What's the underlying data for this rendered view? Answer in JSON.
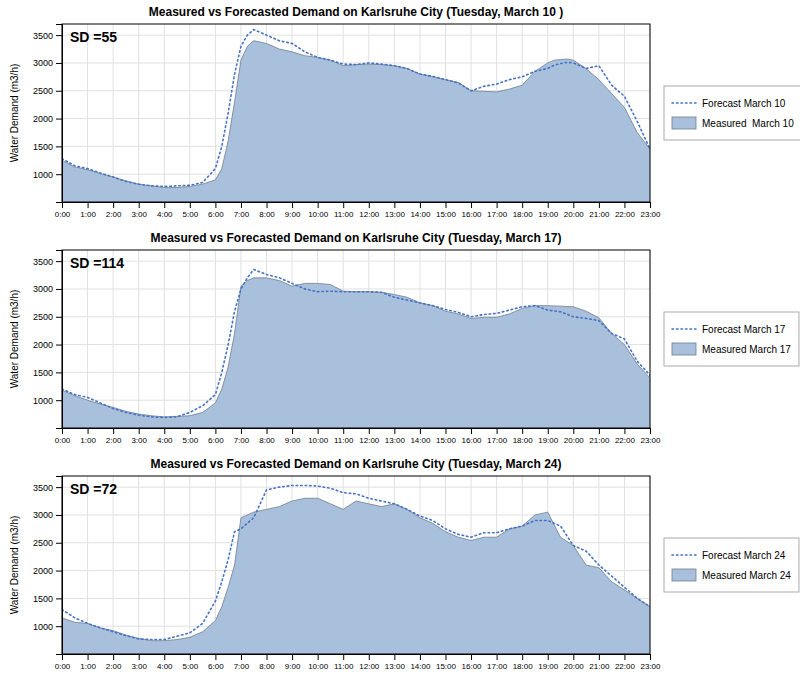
{
  "chart_data": [
    {
      "type": "area",
      "title": "Measured vs Forecasted Demand on Karlsruhe City (Tuesday, March 10 )",
      "y_label": "Water Demand (m3/h)",
      "annotations": [
        "SD =55"
      ],
      "x": [
        0,
        0.5,
        1,
        1.5,
        2,
        2.5,
        3,
        3.5,
        4,
        4.5,
        5,
        5.5,
        6,
        6.25,
        6.5,
        6.75,
        7,
        7.25,
        7.5,
        8,
        8.5,
        9,
        9.5,
        10,
        10.5,
        11,
        11.5,
        12,
        12.5,
        13,
        13.5,
        14,
        14.5,
        15,
        15.5,
        16,
        16.5,
        17,
        17.5,
        18,
        18.5,
        19,
        19.25,
        19.5,
        19.75,
        20,
        20.5,
        21,
        21.5,
        22,
        22.5,
        23
      ],
      "series": [
        {
          "name": "Measured  March 10",
          "type": "area",
          "color": "#A8C0DC",
          "values": [
            1250,
            1130,
            1080,
            1010,
            950,
            880,
            820,
            790,
            760,
            760,
            780,
            820,
            900,
            1100,
            1600,
            2300,
            3050,
            3300,
            3400,
            3350,
            3250,
            3200,
            3130,
            3100,
            3050,
            2950,
            2970,
            2980,
            2970,
            2950,
            2900,
            2800,
            2750,
            2700,
            2650,
            2500,
            2490,
            2480,
            2530,
            2600,
            2850,
            3000,
            3050,
            3060,
            3070,
            3050,
            2900,
            2700,
            2450,
            2200,
            1750,
            1450
          ]
        },
        {
          "name": "Forecast March 10",
          "type": "line",
          "color": "#4472C4",
          "line_style": "dotted",
          "values": [
            1280,
            1150,
            1100,
            1020,
            950,
            870,
            820,
            790,
            780,
            790,
            800,
            850,
            1100,
            1500,
            2100,
            2800,
            3300,
            3500,
            3600,
            3500,
            3400,
            3350,
            3200,
            3100,
            3050,
            2980,
            2970,
            3000,
            2980,
            2950,
            2900,
            2800,
            2760,
            2700,
            2640,
            2500,
            2580,
            2620,
            2700,
            2750,
            2850,
            2900,
            2960,
            2990,
            3010,
            3000,
            2900,
            2950,
            2600,
            2400,
            1950,
            1450
          ]
        }
      ],
      "xlim": [
        0,
        23
      ],
      "xticks": [
        {
          "value": 0,
          "label": "0:00"
        },
        {
          "value": 1,
          "label": "1:00"
        },
        {
          "value": 2,
          "label": "2:00"
        },
        {
          "value": 3,
          "label": "3:00"
        },
        {
          "value": 4,
          "label": "4:00"
        },
        {
          "value": 5,
          "label": "5:00"
        },
        {
          "value": 6,
          "label": "6:00"
        },
        {
          "value": 7,
          "label": "7:00"
        },
        {
          "value": 8,
          "label": "8:00"
        },
        {
          "value": 9,
          "label": "9:00"
        },
        {
          "value": 10,
          "label": "10:00"
        },
        {
          "value": 11,
          "label": "11:00"
        },
        {
          "value": 12,
          "label": "12:00"
        },
        {
          "value": 13,
          "label": "13:00"
        },
        {
          "value": 14,
          "label": "14:00"
        },
        {
          "value": 15,
          "label": "15:00"
        },
        {
          "value": 16,
          "label": "16:00"
        },
        {
          "value": 17,
          "label": "17:00"
        },
        {
          "value": 18,
          "label": "18:00"
        },
        {
          "value": 19,
          "label": "19:00"
        },
        {
          "value": 20,
          "label": "20:00"
        },
        {
          "value": 21,
          "label": "21:00"
        },
        {
          "value": 22,
          "label": "22:00"
        },
        {
          "value": 23,
          "label": "23:00"
        }
      ],
      "ylim": [
        500,
        3700
      ],
      "yticks": [
        1000,
        1500,
        2000,
        2500,
        3000,
        3500
      ],
      "grid": true,
      "legend": "right"
    },
    {
      "type": "area",
      "title": "Measured vs Forecasted Demand on Karlsruhe City (Tuesday, March 17)",
      "y_label": "Water Demand (m3/h)",
      "annotations": [
        "SD =114"
      ],
      "x": [
        0,
        0.5,
        1,
        1.5,
        2,
        2.5,
        3,
        3.5,
        4,
        4.5,
        5,
        5.5,
        6,
        6.25,
        6.5,
        6.75,
        7,
        7.25,
        7.5,
        8,
        8.5,
        9,
        9.5,
        10,
        10.5,
        11,
        11.5,
        12,
        12.5,
        13,
        13.5,
        14,
        14.5,
        15,
        15.5,
        16,
        16.5,
        17,
        17.5,
        18,
        18.5,
        19,
        19.5,
        20,
        20.5,
        21,
        21.5,
        22,
        22.5,
        23
      ],
      "series": [
        {
          "name": "Measured March 17",
          "type": "area",
          "color": "#A8C0DC",
          "values": [
            1180,
            1080,
            1000,
            930,
            870,
            800,
            750,
            720,
            700,
            710,
            720,
            780,
            950,
            1200,
            1600,
            2200,
            3050,
            3150,
            3200,
            3200,
            3150,
            3050,
            3100,
            3100,
            3080,
            2960,
            2950,
            2950,
            2940,
            2900,
            2850,
            2750,
            2700,
            2600,
            2550,
            2470,
            2490,
            2490,
            2550,
            2650,
            2700,
            2700,
            2690,
            2680,
            2600,
            2480,
            2200,
            2000,
            1650,
            1400
          ]
        },
        {
          "name": "Forecast March 17",
          "type": "line",
          "color": "#4472C4",
          "line_style": "dotted",
          "values": [
            1200,
            1100,
            1050,
            950,
            850,
            780,
            730,
            700,
            690,
            700,
            780,
            900,
            1100,
            1500,
            2000,
            2600,
            3000,
            3200,
            3350,
            3260,
            3200,
            3100,
            3000,
            2950,
            2960,
            2950,
            2950,
            2950,
            2940,
            2850,
            2800,
            2750,
            2700,
            2630,
            2580,
            2500,
            2540,
            2560,
            2620,
            2680,
            2700,
            2620,
            2590,
            2500,
            2470,
            2430,
            2200,
            2100,
            1700,
            1450
          ]
        }
      ],
      "xlim": [
        0,
        23
      ],
      "xticks": [
        {
          "value": 0,
          "label": "0:00"
        },
        {
          "value": 1,
          "label": "1:00"
        },
        {
          "value": 2,
          "label": "2:00"
        },
        {
          "value": 3,
          "label": "3:00"
        },
        {
          "value": 4,
          "label": "4:00"
        },
        {
          "value": 5,
          "label": "5:00"
        },
        {
          "value": 6,
          "label": "6:00"
        },
        {
          "value": 7,
          "label": "7:00"
        },
        {
          "value": 8,
          "label": "8:00"
        },
        {
          "value": 9,
          "label": "9:00"
        },
        {
          "value": 10,
          "label": "10:00"
        },
        {
          "value": 11,
          "label": "11:00"
        },
        {
          "value": 12,
          "label": "12:00"
        },
        {
          "value": 13,
          "label": "13:00"
        },
        {
          "value": 14,
          "label": "14:00"
        },
        {
          "value": 15,
          "label": "15:00"
        },
        {
          "value": 16,
          "label": "16:00"
        },
        {
          "value": 17,
          "label": "17:00"
        },
        {
          "value": 18,
          "label": "18:00"
        },
        {
          "value": 19,
          "label": "19:00"
        },
        {
          "value": 20,
          "label": "20:00"
        },
        {
          "value": 21,
          "label": "21:00"
        },
        {
          "value": 22,
          "label": "22:00"
        },
        {
          "value": 23,
          "label": "23:00"
        }
      ],
      "ylim": [
        500,
        3700
      ],
      "yticks": [
        1000,
        1500,
        2000,
        2500,
        3000,
        3500
      ],
      "grid": true,
      "legend": "right"
    },
    {
      "type": "area",
      "title": "Measured vs Forecasted Demand on Karlsruhe City (Tuesday, March 24)",
      "y_label": "Water Demand (m3/h)",
      "annotations": [
        "SD =72"
      ],
      "x": [
        0,
        0.5,
        1,
        1.5,
        2,
        2.5,
        3,
        3.5,
        4,
        4.5,
        5,
        5.5,
        6,
        6.25,
        6.5,
        6.75,
        7,
        7.5,
        8,
        8.5,
        9,
        9.5,
        10,
        10.5,
        11,
        11.5,
        12,
        12.5,
        13,
        13.5,
        14,
        14.5,
        15,
        15.5,
        16,
        16.5,
        17,
        17.5,
        18,
        18.5,
        19,
        19.5,
        20,
        20.5,
        21,
        21.5,
        22,
        22.5,
        23
      ],
      "series": [
        {
          "name": "Measured March 24",
          "type": "area",
          "color": "#A8C0DC",
          "values": [
            1150,
            1070,
            1050,
            970,
            920,
            840,
            780,
            740,
            740,
            760,
            800,
            900,
            1100,
            1350,
            1700,
            2100,
            2950,
            3050,
            3100,
            3150,
            3250,
            3300,
            3300,
            3200,
            3100,
            3250,
            3200,
            3150,
            3200,
            3100,
            2950,
            2850,
            2700,
            2600,
            2540,
            2600,
            2600,
            2750,
            2800,
            3000,
            3050,
            2600,
            2450,
            2100,
            2050,
            1800,
            1650,
            1500,
            1350
          ]
        },
        {
          "name": "Forecast March 24",
          "type": "line",
          "color": "#4472C4",
          "line_style": "dotted",
          "values": [
            1300,
            1150,
            1050,
            970,
            900,
            830,
            770,
            760,
            760,
            820,
            880,
            1050,
            1450,
            1800,
            2200,
            2700,
            2750,
            2950,
            3450,
            3500,
            3530,
            3530,
            3520,
            3480,
            3400,
            3380,
            3300,
            3250,
            3200,
            3100,
            2980,
            2900,
            2750,
            2650,
            2600,
            2680,
            2680,
            2750,
            2800,
            2900,
            2900,
            2800,
            2450,
            2350,
            2100,
            1900,
            1700,
            1500,
            1350
          ]
        }
      ],
      "xlim": [
        0,
        23
      ],
      "xticks": [
        {
          "value": 0,
          "label": "0:00"
        },
        {
          "value": 1,
          "label": "1:00"
        },
        {
          "value": 2,
          "label": "2:00"
        },
        {
          "value": 3,
          "label": "3:00"
        },
        {
          "value": 4,
          "label": "4:00"
        },
        {
          "value": 5,
          "label": "5:00"
        },
        {
          "value": 6,
          "label": "6:00"
        },
        {
          "value": 7,
          "label": "7:00"
        },
        {
          "value": 8,
          "label": "8:00"
        },
        {
          "value": 9,
          "label": "9:00"
        },
        {
          "value": 10,
          "label": "10:00"
        },
        {
          "value": 11,
          "label": "11:00"
        },
        {
          "value": 12,
          "label": "12:00"
        },
        {
          "value": 13,
          "label": "13:00"
        },
        {
          "value": 14,
          "label": "14:00"
        },
        {
          "value": 15,
          "label": "15:00"
        },
        {
          "value": 16,
          "label": "16:00"
        },
        {
          "value": 17,
          "label": "17:00"
        },
        {
          "value": 18,
          "label": "18:00"
        },
        {
          "value": 19,
          "label": "19:00"
        },
        {
          "value": 20,
          "label": "20:00"
        },
        {
          "value": 21,
          "label": "21:00"
        },
        {
          "value": 22,
          "label": "22:00"
        },
        {
          "value": 23,
          "label": "23:00"
        }
      ],
      "ylim": [
        500,
        3700
      ],
      "yticks": [
        1000,
        1500,
        2000,
        2500,
        3000,
        3500
      ],
      "grid": true,
      "legend": "right"
    }
  ]
}
